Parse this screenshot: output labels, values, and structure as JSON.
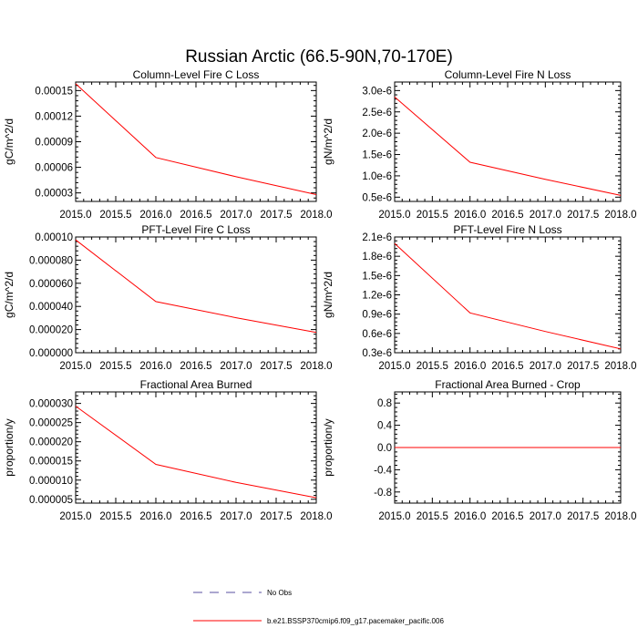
{
  "page_title": "Russian Arctic (66.5-90N,70-170E)",
  "colors": {
    "model_line": "#ff0000",
    "obs_line": "#5a4fa0",
    "axis": "#000000"
  },
  "legend": [
    {
      "label": "No Obs",
      "style": "dashed",
      "color": "#5a4fa0"
    },
    {
      "label": "b.e21.BSSP370cmip6.f09_g17.pacemaker_pacific.006",
      "style": "solid",
      "color": "#ff0000"
    }
  ],
  "chart_data": [
    {
      "type": "line",
      "title": "Column-Level Fire C Loss",
      "xlabel": "",
      "ylabel": "gC/m^2/d",
      "xlim": [
        2015.0,
        2018.0
      ],
      "ylim": [
        2e-05,
        0.00016
      ],
      "xticks": [
        "2015.0",
        "2015.5",
        "2016.0",
        "2016.5",
        "2017.0",
        "2017.5",
        "2018.0"
      ],
      "yticks": [
        {
          "v": 3e-05,
          "label": "0.00003"
        },
        {
          "v": 6e-05,
          "label": "0.00006"
        },
        {
          "v": 9e-05,
          "label": "0.00009"
        },
        {
          "v": 0.00012,
          "label": "0.00012"
        },
        {
          "v": 0.00015,
          "label": "0.00015"
        }
      ],
      "series": [
        {
          "name": "b.e21.BSSP370cmip6.f09_g17.pacemaker_pacific.006",
          "x": [
            2015.0,
            2016.0,
            2017.0,
            2018.0
          ],
          "values": [
            0.000158,
            7.15e-05,
            4.9e-05,
            2.8e-05
          ]
        }
      ]
    },
    {
      "type": "line",
      "title": "Column-Level Fire N Loss",
      "xlabel": "",
      "ylabel": "gN/m^2/d",
      "xlim": [
        2015.0,
        2018.0
      ],
      "ylim": [
        4e-07,
        3.2e-06
      ],
      "xticks": [
        "2015.0",
        "2015.5",
        "2016.0",
        "2016.5",
        "2017.0",
        "2017.5",
        "2018.0"
      ],
      "yticks": [
        {
          "v": 5e-07,
          "label": "0.5e-6"
        },
        {
          "v": 1e-06,
          "label": "1.0e-6"
        },
        {
          "v": 1.5e-06,
          "label": "1.5e-6"
        },
        {
          "v": 2e-06,
          "label": "2.0e-6"
        },
        {
          "v": 2.5e-06,
          "label": "2.5e-6"
        },
        {
          "v": 3e-06,
          "label": "3.0e-6"
        }
      ],
      "series": [
        {
          "name": "b.e21.BSSP370cmip6.f09_g17.pacemaker_pacific.006",
          "x": [
            2015.0,
            2016.0,
            2017.0,
            2018.0
          ],
          "values": [
            2.85e-06,
            1.32e-06,
            9.2e-07,
            5.4e-07
          ]
        }
      ]
    },
    {
      "type": "line",
      "title": "PFT-Level Fire C Loss",
      "xlabel": "",
      "ylabel": "gC/m^2/d",
      "xlim": [
        2015.0,
        2018.0
      ],
      "ylim": [
        0.0,
        0.0001
      ],
      "xticks": [
        "2015.0",
        "2015.5",
        "2016.0",
        "2016.5",
        "2017.0",
        "2017.5",
        "2018.0"
      ],
      "yticks": [
        {
          "v": 0.0,
          "label": "0.000000"
        },
        {
          "v": 2e-05,
          "label": "0.000020"
        },
        {
          "v": 4e-05,
          "label": "0.000040"
        },
        {
          "v": 6e-05,
          "label": "0.000060"
        },
        {
          "v": 8e-05,
          "label": "0.000080"
        },
        {
          "v": 0.0001,
          "label": "0.00010"
        }
      ],
      "series": [
        {
          "name": "b.e21.BSSP370cmip6.f09_g17.pacemaker_pacific.006",
          "x": [
            2015.0,
            2016.0,
            2017.0,
            2018.0
          ],
          "values": [
            9.75e-05,
            4.42e-05,
            3.02e-05,
            1.75e-05
          ]
        }
      ]
    },
    {
      "type": "line",
      "title": "PFT-Level Fire N Loss",
      "xlabel": "",
      "ylabel": "gN/m^2/d",
      "xlim": [
        2015.0,
        2018.0
      ],
      "ylim": [
        3e-07,
        2.1e-06
      ],
      "xticks": [
        "2015.0",
        "2015.5",
        "2016.0",
        "2016.5",
        "2017.0",
        "2017.5",
        "2018.0"
      ],
      "yticks": [
        {
          "v": 3e-07,
          "label": "0.3e-6"
        },
        {
          "v": 6e-07,
          "label": "0.6e-6"
        },
        {
          "v": 9e-07,
          "label": "0.9e-6"
        },
        {
          "v": 1.2e-06,
          "label": "1.2e-6"
        },
        {
          "v": 1.5e-06,
          "label": "1.5e-6"
        },
        {
          "v": 1.8e-06,
          "label": "1.8e-6"
        },
        {
          "v": 2.1e-06,
          "label": "2.1e-6"
        }
      ],
      "series": [
        {
          "name": "b.e21.BSSP370cmip6.f09_g17.pacemaker_pacific.006",
          "x": [
            2015.0,
            2016.0,
            2017.0,
            2018.0
          ],
          "values": [
            2e-06,
            9.2e-07,
            6.3e-07,
            3.6e-07
          ]
        }
      ]
    },
    {
      "type": "line",
      "title": "Fractional Area Burned",
      "xlabel": "",
      "ylabel": "proportion/y",
      "xlim": [
        2015.0,
        2018.0
      ],
      "ylim": [
        4e-06,
        3.3e-05
      ],
      "xticks": [
        "2015.0",
        "2015.5",
        "2016.0",
        "2016.5",
        "2017.0",
        "2017.5",
        "2018.0"
      ],
      "yticks": [
        {
          "v": 5e-06,
          "label": "0.000005"
        },
        {
          "v": 1e-05,
          "label": "0.000010"
        },
        {
          "v": 1.5e-05,
          "label": "0.000015"
        },
        {
          "v": 2e-05,
          "label": "0.000020"
        },
        {
          "v": 2.5e-05,
          "label": "0.000025"
        },
        {
          "v": 3e-05,
          "label": "0.000030"
        }
      ],
      "series": [
        {
          "name": "b.e21.BSSP370cmip6.f09_g17.pacemaker_pacific.006",
          "x": [
            2015.0,
            2016.0,
            2017.0,
            2018.0
          ],
          "values": [
            2.93e-05,
            1.41e-05,
            9.4e-06,
            5.4e-06
          ]
        }
      ]
    },
    {
      "type": "line",
      "title": "Fractional Area Burned - Crop",
      "xlabel": "",
      "ylabel": "proportion/y",
      "xlim": [
        2015.0,
        2018.0
      ],
      "ylim": [
        -1.0,
        1.0
      ],
      "xticks": [
        "2015.0",
        "2015.5",
        "2016.0",
        "2016.5",
        "2017.0",
        "2017.5",
        "2018.0"
      ],
      "yticks": [
        {
          "v": -0.8,
          "label": "-0.8"
        },
        {
          "v": -0.4,
          "label": "-0.4"
        },
        {
          "v": 0.0,
          "label": "0.0"
        },
        {
          "v": 0.4,
          "label": "0.4"
        },
        {
          "v": 0.8,
          "label": "0.8"
        }
      ],
      "series": [
        {
          "name": "b.e21.BSSP370cmip6.f09_g17.pacemaker_pacific.006",
          "x": [
            2015.0,
            2016.0,
            2017.0,
            2018.0
          ],
          "values": [
            0.0,
            0.0,
            0.0,
            0.0
          ]
        }
      ]
    }
  ]
}
